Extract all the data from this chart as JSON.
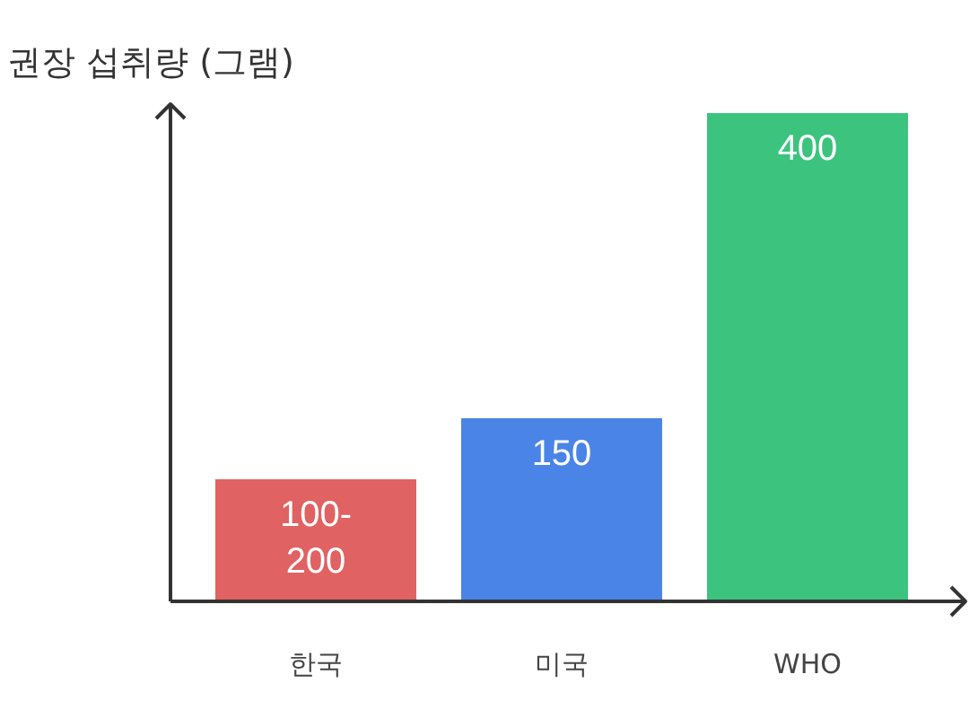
{
  "chart_data": {
    "type": "bar",
    "ylabel": "권장 섭취량 (그램)",
    "categories": [
      "한국",
      "미국",
      "WHO"
    ],
    "values": [
      100,
      150,
      400
    ],
    "value_labels": [
      "100-200",
      "150",
      "400"
    ],
    "colors": [
      "#e06262",
      "#4a84e6",
      "#3cc47f"
    ]
  }
}
